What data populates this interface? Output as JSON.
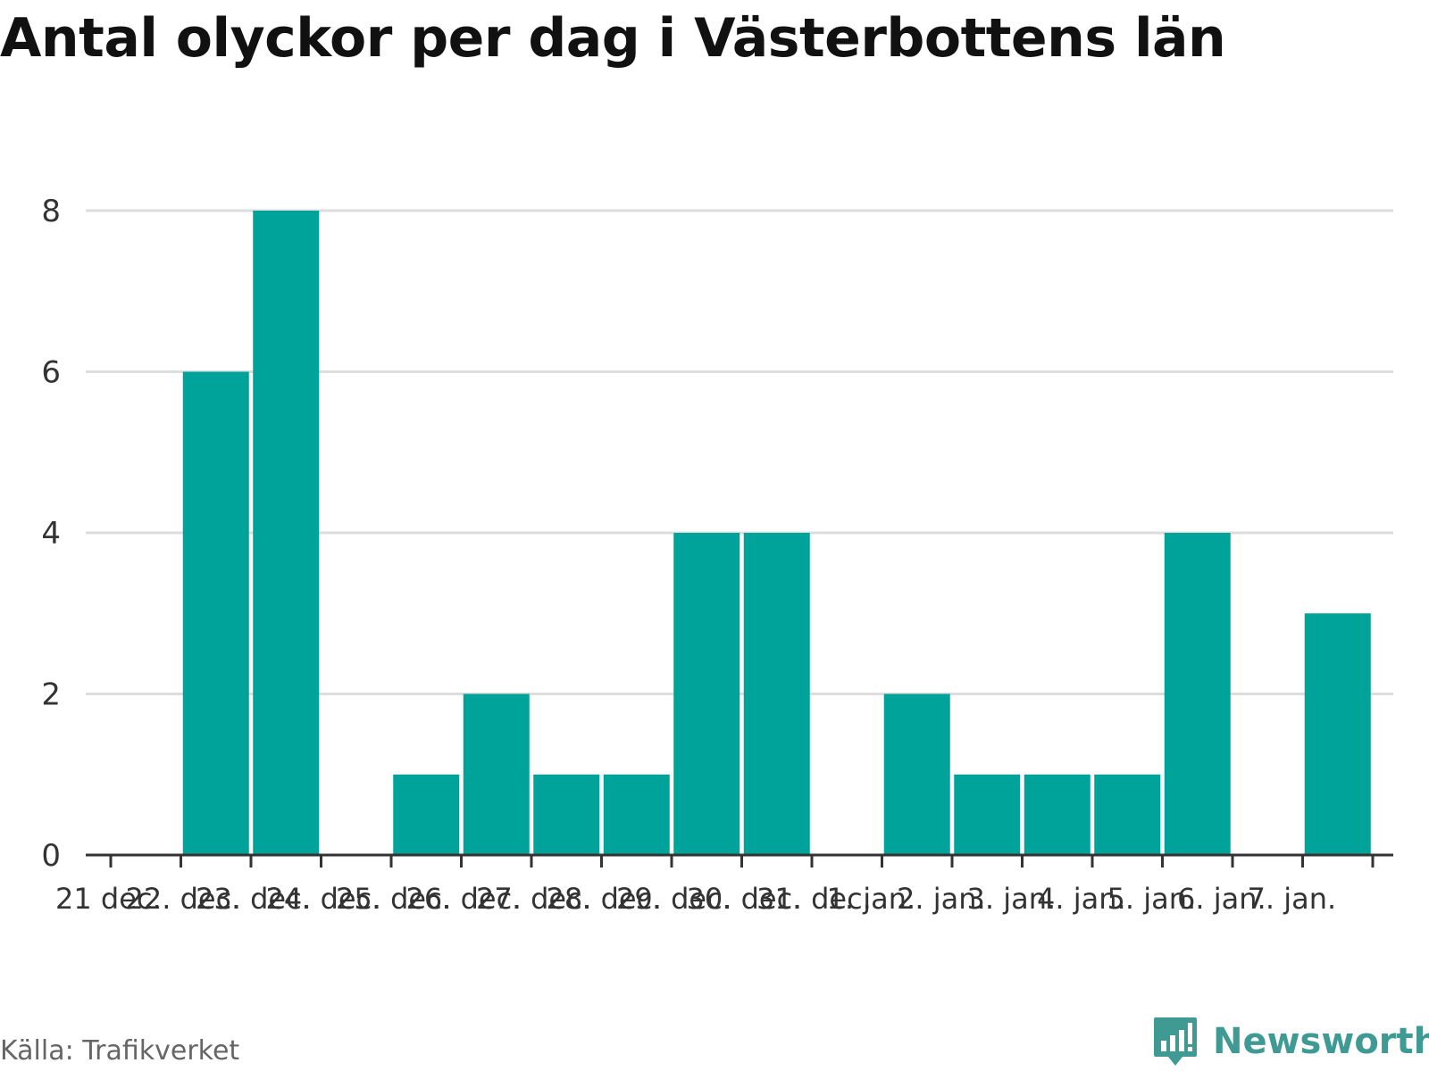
{
  "chart_data": {
    "type": "bar",
    "title": "Antal olyckor per dag i Västerbottens län",
    "categories": [
      "21 dec.",
      "22. dec.",
      "23. dec.",
      "24. dec.",
      "25. dec.",
      "26. dec.",
      "27. dec.",
      "28. dec.",
      "29. dec.",
      "30. dec.",
      "31. dec.",
      "1. jan.",
      "2. jan.",
      "3. jan.",
      "4. jan.",
      "5. jan.",
      "6. jan.",
      "7. jan."
    ],
    "values": [
      0,
      6,
      8,
      0,
      1,
      2,
      1,
      1,
      4,
      4,
      0,
      2,
      1,
      1,
      1,
      4,
      0,
      3
    ],
    "ylim": [
      0,
      8
    ],
    "yticks": [
      0,
      2,
      4,
      6,
      8
    ],
    "grid": true,
    "bar_color": "#00a39a",
    "gridline_color": "#dddddd"
  },
  "footer": {
    "source": "Källa: Trafikverket",
    "brand": "Newsworthy",
    "brand_color": "#3e9a92",
    "brand_icon": "newsworthy-logo-icon"
  }
}
